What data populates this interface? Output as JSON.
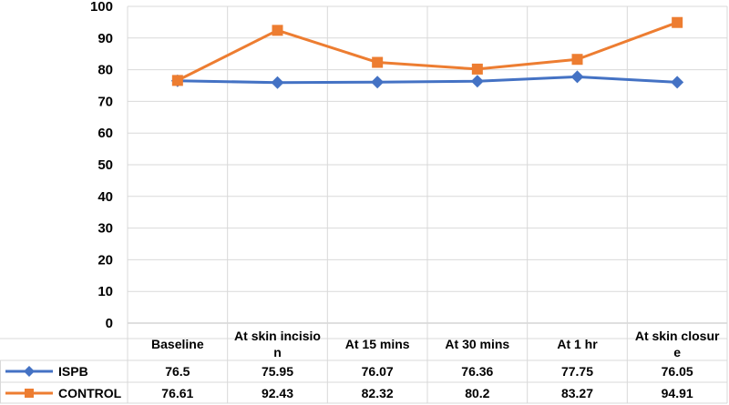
{
  "chart_data": {
    "type": "line",
    "title": "",
    "xlabel": "",
    "ylabel": "",
    "ylim": [
      0,
      100
    ],
    "ytick_step": 10,
    "grid": true,
    "legend": "table-left",
    "categories": [
      [
        "Baseline"
      ],
      [
        "At skin incisio",
        "n"
      ],
      [
        "At 15 mins"
      ],
      [
        "At 30 mins"
      ],
      [
        "At 1 hr"
      ],
      [
        "At skin closur",
        "e"
      ]
    ],
    "series": [
      {
        "name": "ISPB",
        "color": "#4472C4",
        "marker": "diamond",
        "values": [
          76.5,
          75.95,
          76.07,
          76.36,
          77.75,
          76.05
        ],
        "labels": [
          "76.5",
          "75.95",
          "76.07",
          "76.36",
          "77.75",
          "76.05"
        ]
      },
      {
        "name": "CONTROL",
        "color": "#ED7D31",
        "marker": "square",
        "values": [
          76.61,
          92.43,
          82.32,
          80.2,
          83.27,
          94.91
        ],
        "labels": [
          "76.61",
          "92.43",
          "82.32",
          "80.2",
          "83.27",
          "94.91"
        ]
      }
    ]
  }
}
